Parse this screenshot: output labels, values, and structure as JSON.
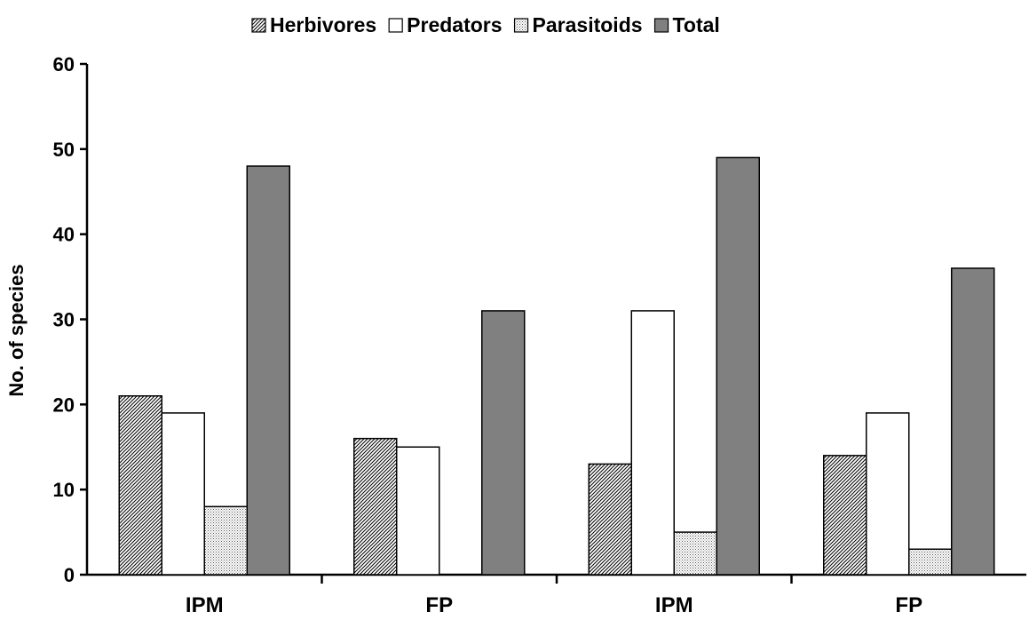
{
  "chart_data": {
    "type": "bar",
    "categories": [
      "IPM",
      "FP",
      "IPM",
      "FP"
    ],
    "series": [
      {
        "name": "Herbivores",
        "values": [
          21,
          16,
          13,
          14
        ],
        "fill": "hatch"
      },
      {
        "name": "Predators",
        "values": [
          19,
          15,
          31,
          19
        ],
        "fill": "#ffffff"
      },
      {
        "name": "Parasitoids",
        "values": [
          8,
          0,
          5,
          3
        ],
        "fill": "dots"
      },
      {
        "name": "Total",
        "values": [
          48,
          31,
          49,
          36
        ],
        "fill": "#808080"
      }
    ],
    "title": "",
    "xlabel": "",
    "ylabel": "No. of species",
    "ylim": [
      0,
      60
    ],
    "yticks": [
      0,
      10,
      20,
      30,
      40,
      50,
      60
    ],
    "legend_position": "top-center",
    "grid": false
  }
}
